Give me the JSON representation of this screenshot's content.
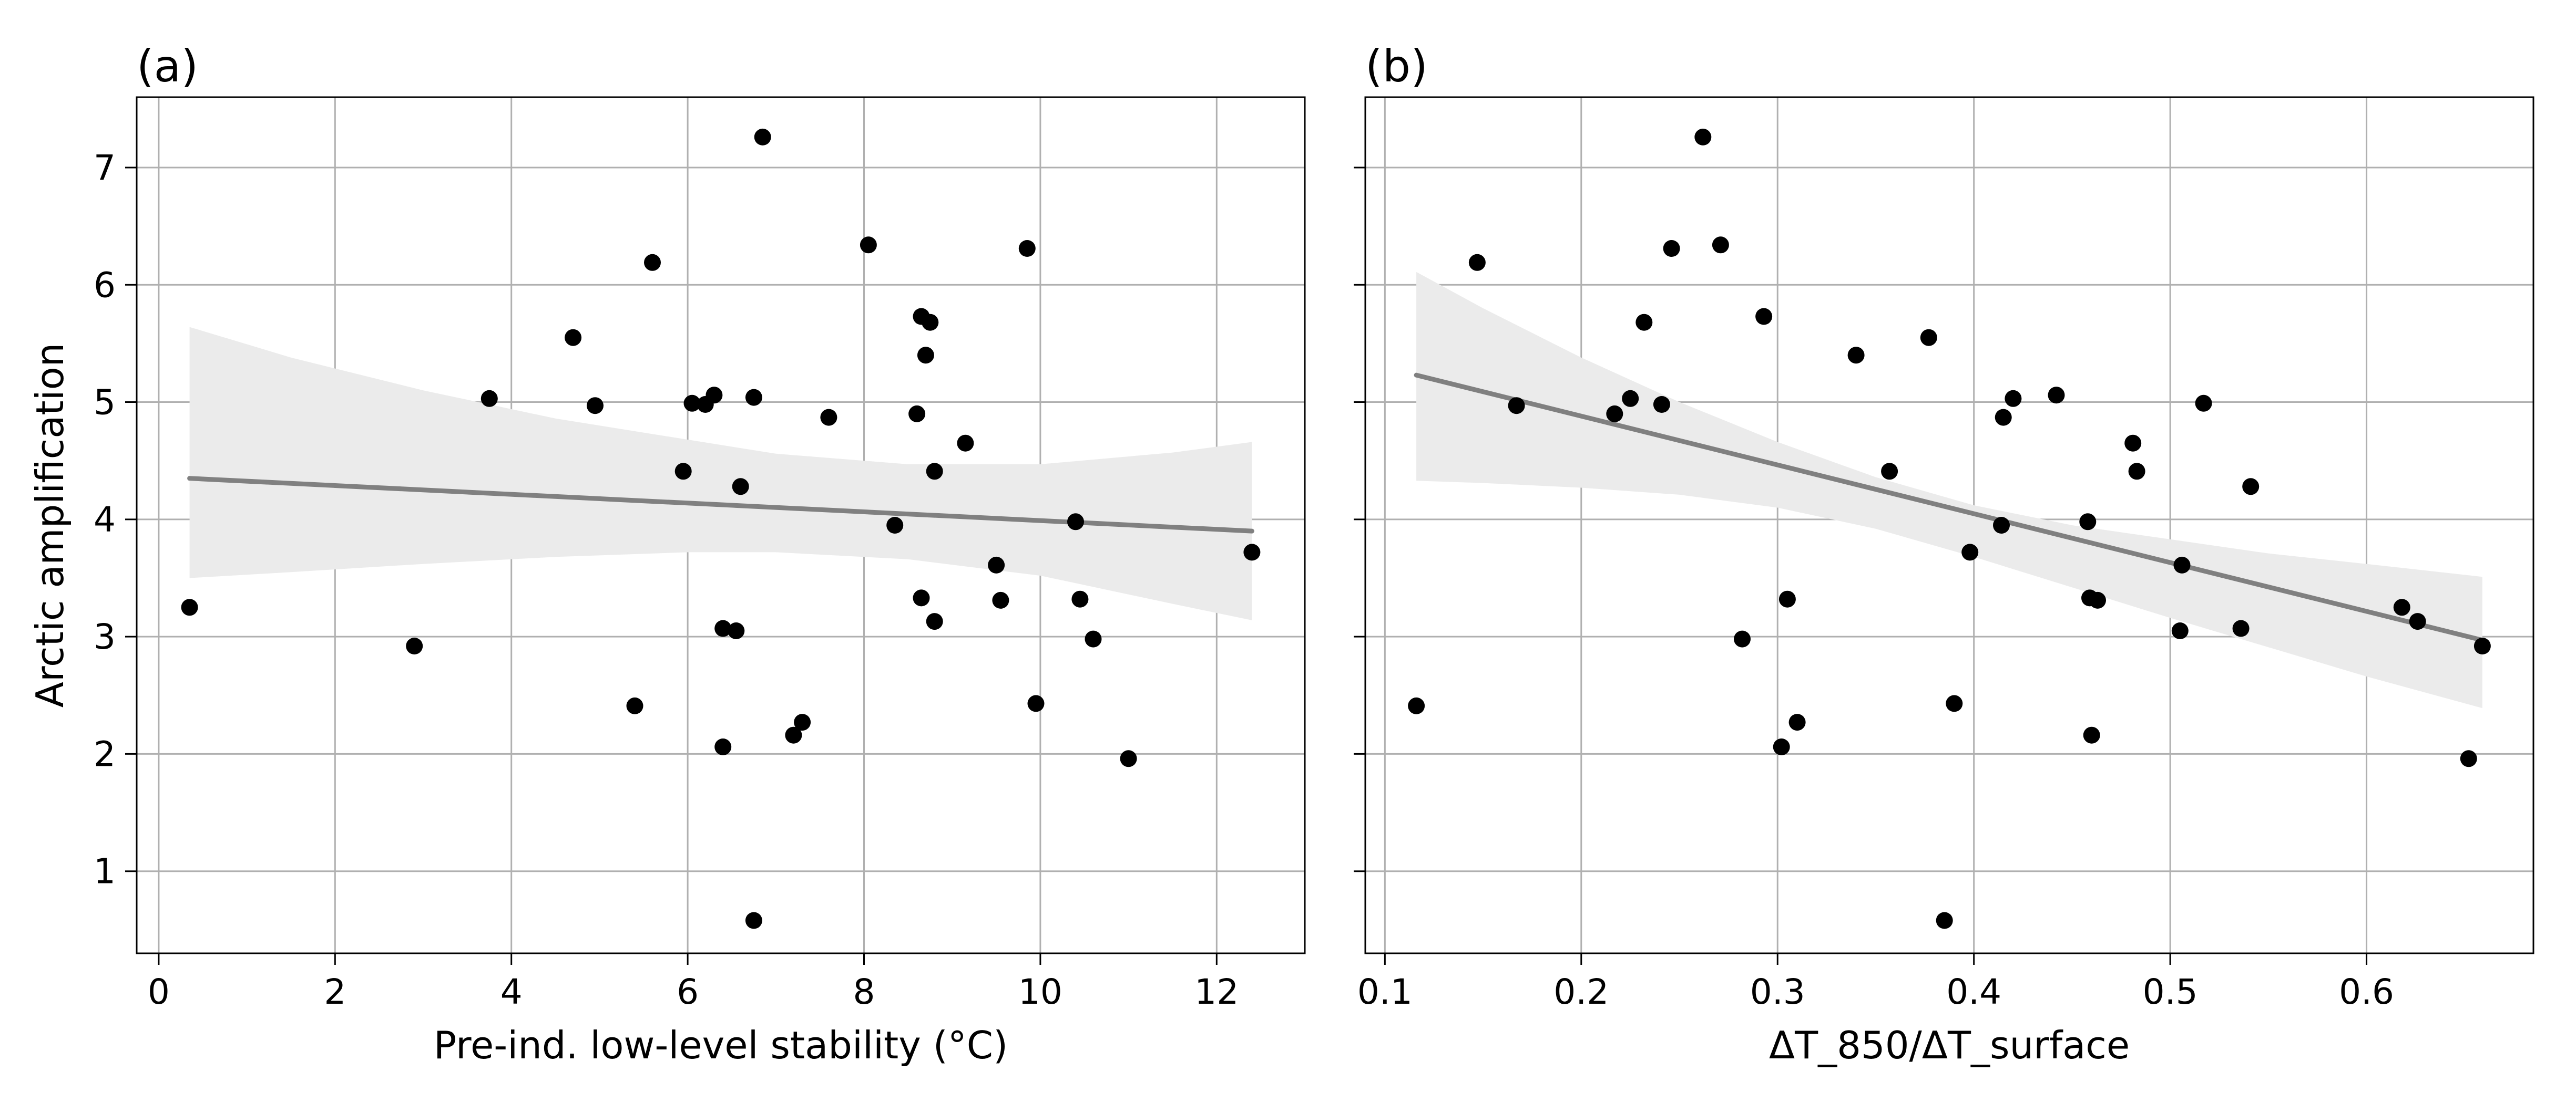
{
  "chart_data": [
    {
      "type": "scatter",
      "panel_label": "(a)",
      "xlabel": "Pre-ind. low-level stability (°C)",
      "ylabel": "Arctic amplification",
      "xlim": [
        -0.25,
        13.0
      ],
      "ylim": [
        0.3,
        7.6
      ],
      "xticks": [
        0,
        2,
        4,
        6,
        8,
        10,
        12
      ],
      "yticks": [
        1,
        2,
        3,
        4,
        5,
        6,
        7
      ],
      "grid": true,
      "colors": {
        "points": "#000000",
        "fit_line": "#808080",
        "band": "#ebebeb",
        "grid": "#b0b0b0"
      },
      "points": {
        "x": [
          0.35,
          2.9,
          3.75,
          4.7,
          4.95,
          5.4,
          5.6,
          5.95,
          6.05,
          6.2,
          6.3,
          6.4,
          6.4,
          6.55,
          6.6,
          6.75,
          6.75,
          6.85,
          7.2,
          7.3,
          7.6,
          8.05,
          8.35,
          8.6,
          8.65,
          8.65,
          8.7,
          8.75,
          8.8,
          8.8,
          9.15,
          9.5,
          9.55,
          9.85,
          9.95,
          10.4,
          10.45,
          10.6,
          11.0,
          12.4
        ],
        "y": [
          3.25,
          2.92,
          5.03,
          5.55,
          4.97,
          2.41,
          6.19,
          4.41,
          4.99,
          4.98,
          5.06,
          3.07,
          2.06,
          3.05,
          4.28,
          0.58,
          5.04,
          7.26,
          2.16,
          2.27,
          4.87,
          6.34,
          3.95,
          4.9,
          3.33,
          5.73,
          5.4,
          5.68,
          4.41,
          3.13,
          4.65,
          3.61,
          3.31,
          6.31,
          2.43,
          3.98,
          3.32,
          2.98,
          1.96,
          3.72
        ]
      },
      "fit": {
        "x": [
          0.35,
          12.4
        ],
        "y": [
          4.35,
          3.9
        ]
      },
      "band": {
        "x": [
          0.35,
          1.5,
          3.0,
          4.5,
          6.0,
          7.0,
          8.5,
          10.0,
          11.5,
          12.4
        ],
        "upper": [
          5.64,
          5.38,
          5.1,
          4.86,
          4.68,
          4.56,
          4.47,
          4.47,
          4.57,
          4.66
        ],
        "lower": [
          3.5,
          3.55,
          3.62,
          3.68,
          3.72,
          3.72,
          3.66,
          3.52,
          3.28,
          3.14
        ]
      }
    },
    {
      "type": "scatter",
      "panel_label": "(b)",
      "xlabel": "ΔT_850/ΔT_surface",
      "ylabel": "",
      "xlim": [
        0.09,
        0.685
      ],
      "ylim": [
        0.3,
        7.6
      ],
      "xticks": [
        0.1,
        0.2,
        0.3,
        0.4,
        0.5,
        0.6
      ],
      "xtick_labels": [
        "0.1",
        "0.2",
        "0.3",
        "0.4",
        "0.5",
        "0.6"
      ],
      "yticks": [
        1,
        2,
        3,
        4,
        5,
        6,
        7
      ],
      "grid": true,
      "colors": {
        "points": "#000000",
        "fit_line": "#808080",
        "band": "#ebebeb",
        "grid": "#b0b0b0"
      },
      "points": {
        "x": [
          0.116,
          0.147,
          0.167,
          0.217,
          0.225,
          0.232,
          0.241,
          0.246,
          0.262,
          0.271,
          0.282,
          0.293,
          0.302,
          0.305,
          0.31,
          0.34,
          0.357,
          0.377,
          0.385,
          0.39,
          0.398,
          0.414,
          0.415,
          0.42,
          0.442,
          0.458,
          0.459,
          0.46,
          0.463,
          0.481,
          0.483,
          0.505,
          0.506,
          0.517,
          0.536,
          0.541,
          0.618,
          0.626,
          0.652,
          0.659
        ],
        "y": [
          2.41,
          6.19,
          4.97,
          4.9,
          5.03,
          5.68,
          4.98,
          6.31,
          7.26,
          6.34,
          2.98,
          5.73,
          2.06,
          3.32,
          2.27,
          5.4,
          4.41,
          5.55,
          0.58,
          2.43,
          3.72,
          3.95,
          4.87,
          5.03,
          5.06,
          3.98,
          3.33,
          2.16,
          3.31,
          4.65,
          4.41,
          3.05,
          3.61,
          4.99,
          3.07,
          4.28,
          3.25,
          3.13,
          1.96,
          2.92
        ]
      },
      "fit": {
        "x": [
          0.116,
          0.659
        ],
        "y": [
          5.23,
          2.97
        ]
      },
      "band": {
        "x": [
          0.116,
          0.15,
          0.2,
          0.25,
          0.3,
          0.35,
          0.4,
          0.45,
          0.5,
          0.55,
          0.6,
          0.659
        ],
        "upper": [
          6.11,
          5.8,
          5.38,
          5.0,
          4.66,
          4.36,
          4.12,
          3.95,
          3.83,
          3.71,
          3.62,
          3.51
        ],
        "lower": [
          4.33,
          4.31,
          4.27,
          4.21,
          4.1,
          3.92,
          3.68,
          3.42,
          3.16,
          2.91,
          2.66,
          2.39
        ]
      }
    }
  ]
}
